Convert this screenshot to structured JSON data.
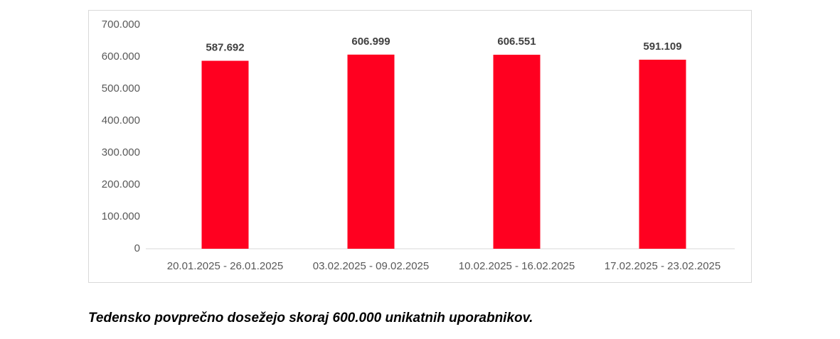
{
  "chart_data": {
    "type": "bar",
    "categories": [
      "20.01.2025 - 26.01.2025",
      "03.02.2025 - 09.02.2025",
      "10.02.2025 - 16.02.2025",
      "17.02.2025 - 23.02.2025"
    ],
    "values": [
      587692,
      606999,
      606551,
      591109
    ],
    "value_labels": [
      "587.692",
      "606.999",
      "606.551",
      "591.109"
    ],
    "color": "#ff0020",
    "ylim": [
      0,
      700000
    ],
    "yticks": [
      0,
      {
        "value": 100000,
        "label": "100.000"
      },
      {
        "value": 200000,
        "label": "200.000"
      },
      {
        "value": 300000,
        "label": "300.000"
      },
      {
        "value": 400000,
        "label": "400.000"
      },
      {
        "value": 500000,
        "label": "500.000"
      },
      {
        "value": 600000,
        "label": "600.000"
      },
      {
        "value": 700000,
        "label": "700.000"
      }
    ],
    "grid": false
  },
  "caption": "Tedensko povprečno dosežejo skoraj 600.000 unikatnih uporabnikov."
}
